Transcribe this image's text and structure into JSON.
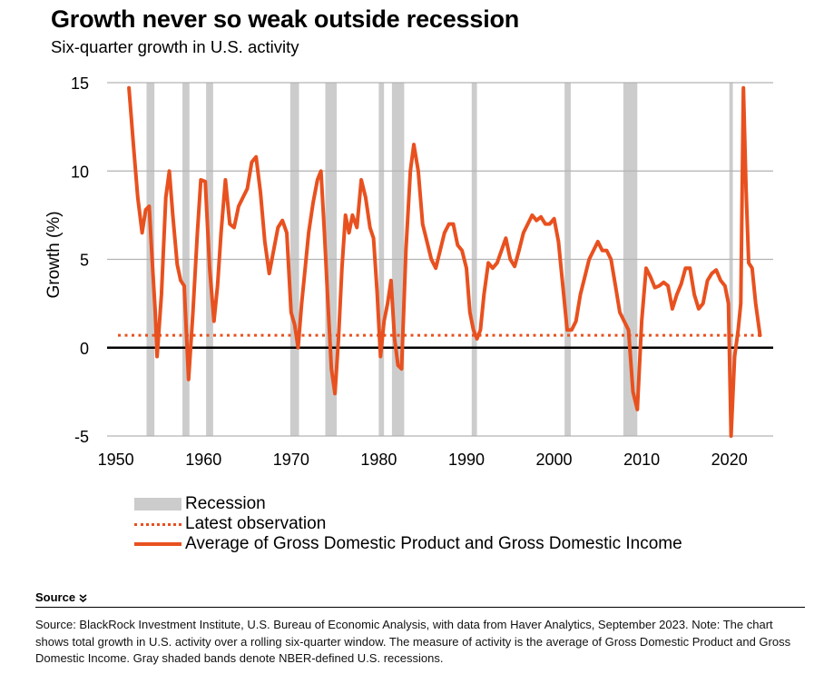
{
  "title": "Growth never so weak outside recession",
  "subtitle": "Six-quarter  growth in U.S. activity",
  "colors": {
    "series": "#e8511f",
    "recession": "#cccccc",
    "grid": "#b3b3b3",
    "zero": "#000000"
  },
  "legend": {
    "recession": "Recession",
    "latest": "Latest observation",
    "series": "Average of Gross Domestic Product and Gross Domestic Income"
  },
  "source": {
    "toggle_label": "Source",
    "toggle_icon": "chevron-double-down-icon",
    "text": "Source: BlackRock Investment Institute, U.S. Bureau of Economic Analysis, with data from Haver Analytics, September 2023. Note: The chart shows total growth in U.S. activity over a rolling six-quarter window. The measure of activity is the average of Gross Domestic Product and Gross Domestic Income. Gray shaded bands denote NBER-defined U.S. recessions."
  },
  "chart_data": {
    "type": "line",
    "title": "Growth never so weak outside recession",
    "subtitle": "Six-quarter  growth in U.S. activity",
    "xlabel": "",
    "ylabel": "Growth (%)",
    "xlim": [
      1949,
      2025
    ],
    "ylim": [
      -5,
      15
    ],
    "x_ticks": [
      1950,
      1960,
      1970,
      1980,
      1990,
      2000,
      2010,
      2020
    ],
    "y_ticks": [
      -5,
      0,
      5,
      10,
      15
    ],
    "grid": true,
    "recessions": [
      [
        1953.5,
        1954.4
      ],
      [
        1957.6,
        1958.4
      ],
      [
        1960.3,
        1961.1
      ],
      [
        1969.9,
        1970.9
      ],
      [
        1973.9,
        1975.2
      ],
      [
        1980.0,
        1980.6
      ],
      [
        1981.5,
        1982.9
      ],
      [
        1990.6,
        1991.2
      ],
      [
        2001.2,
        2001.9
      ],
      [
        2007.9,
        2009.5
      ],
      [
        2020.0,
        2020.4
      ]
    ],
    "latest_observation": 0.7,
    "series": [
      {
        "name": "Average of Gross Domestic Product and Gross Domestic Income",
        "x": [
          1951.5,
          1952,
          1952.5,
          1953,
          1953.4,
          1953.8,
          1954.2,
          1954.5,
          1954.7,
          1955.2,
          1955.7,
          1956.1,
          1956.5,
          1957,
          1957.4,
          1957.8,
          1958.3,
          1958.8,
          1959.3,
          1959.7,
          1960.2,
          1960.7,
          1961.2,
          1961.6,
          1962,
          1962.5,
          1963,
          1963.5,
          1964,
          1964.5,
          1965,
          1965.5,
          1966,
          1966.5,
          1967,
          1967.5,
          1968,
          1968.5,
          1969,
          1969.5,
          1970,
          1970.4,
          1970.8,
          1971.2,
          1971.6,
          1972,
          1972.5,
          1973,
          1973.4,
          1973.8,
          1974.2,
          1974.6,
          1975,
          1975.4,
          1975.8,
          1976.2,
          1976.6,
          1977,
          1977.5,
          1978,
          1978.5,
          1979,
          1979.4,
          1979.8,
          1980.2,
          1980.6,
          1981,
          1981.4,
          1981.8,
          1982.2,
          1982.6,
          1983.1,
          1983.6,
          1984,
          1984.5,
          1985,
          1985.5,
          1986,
          1986.5,
          1987,
          1987.5,
          1988,
          1988.5,
          1989,
          1989.5,
          1990,
          1990.4,
          1990.8,
          1991.2,
          1991.6,
          1992,
          1992.5,
          1993,
          1993.5,
          1994,
          1994.5,
          1995,
          1995.5,
          1996,
          1996.5,
          1997,
          1997.5,
          1998,
          1998.5,
          1999,
          1999.5,
          2000,
          2000.5,
          2001,
          2001.5,
          2002,
          2002.5,
          2003,
          2003.5,
          2004,
          2004.5,
          2005,
          2005.5,
          2006,
          2006.5,
          2007,
          2007.5,
          2008,
          2008.5,
          2009,
          2009.5,
          2010,
          2010.5,
          2011,
          2011.5,
          2012,
          2012.5,
          2013,
          2013.5,
          2014,
          2014.5,
          2015,
          2015.5,
          2016,
          2016.5,
          2017,
          2017.5,
          2018,
          2018.5,
          2019,
          2019.5,
          2019.9,
          2020.2,
          2020.6,
          2021,
          2021.3,
          2021.6,
          2021.9,
          2022.2,
          2022.6,
          2023,
          2023.5
        ],
        "values": [
          14.7,
          11.5,
          8.5,
          6.5,
          7.8,
          8.0,
          4.5,
          2.0,
          -0.5,
          3.0,
          8.5,
          10.0,
          7.5,
          4.7,
          3.8,
          3.5,
          -1.8,
          2.0,
          6.5,
          9.5,
          9.4,
          4.5,
          1.5,
          3.5,
          6.5,
          9.5,
          7.0,
          6.8,
          8.0,
          8.5,
          9.0,
          10.5,
          10.8,
          8.8,
          6.0,
          4.2,
          5.5,
          6.8,
          7.2,
          6.5,
          2.0,
          1.3,
          0.0,
          2.5,
          4.5,
          6.5,
          8.2,
          9.5,
          10.0,
          6.5,
          2.5,
          -1.2,
          -2.6,
          0.5,
          4.5,
          7.5,
          6.5,
          7.5,
          6.8,
          9.5,
          8.5,
          6.8,
          6.2,
          3.2,
          -0.5,
          1.5,
          2.5,
          3.8,
          0.5,
          -1.0,
          -1.2,
          5.5,
          10.0,
          11.5,
          10.0,
          7.0,
          6.0,
          5.0,
          4.5,
          5.5,
          6.5,
          7.0,
          7.0,
          5.8,
          5.5,
          4.5,
          2.0,
          1.0,
          0.5,
          1.0,
          3.0,
          4.8,
          4.5,
          4.8,
          5.5,
          6.2,
          5.0,
          4.6,
          5.5,
          6.5,
          7.0,
          7.5,
          7.2,
          7.4,
          7.0,
          7.0,
          7.3,
          6.0,
          3.5,
          1.0,
          1.0,
          1.5,
          3.0,
          4.0,
          5.0,
          5.5,
          6.0,
          5.5,
          5.5,
          5.0,
          3.5,
          2.0,
          1.5,
          1.0,
          -2.5,
          -3.5,
          1.5,
          4.5,
          4.0,
          3.4,
          3.5,
          3.7,
          3.5,
          2.2,
          3.0,
          3.6,
          4.5,
          4.5,
          3.0,
          2.2,
          2.5,
          3.8,
          4.2,
          4.4,
          3.8,
          3.5,
          2.5,
          -5.0,
          -0.5,
          1.0,
          2.5,
          14.7,
          9.0,
          4.8,
          4.5,
          2.5,
          0.7
        ]
      }
    ]
  }
}
